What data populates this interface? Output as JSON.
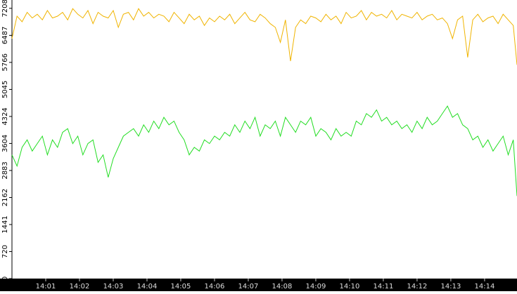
{
  "chart_data": {
    "type": "line",
    "x": [
      0,
      0.15,
      0.3,
      0.45,
      0.6,
      0.75,
      0.9,
      1.05,
      1.2,
      1.35,
      1.5,
      1.65,
      1.8,
      1.95,
      2.1,
      2.25,
      2.4,
      2.55,
      2.7,
      2.85,
      3,
      3.15,
      3.3,
      3.45,
      3.6,
      3.75,
      3.9,
      4.05,
      4.2,
      4.35,
      4.5,
      4.65,
      4.8,
      4.95,
      5.1,
      5.25,
      5.4,
      5.55,
      5.7,
      5.85,
      6,
      6.15,
      6.3,
      6.45,
      6.6,
      6.75,
      6.9,
      7.05,
      7.2,
      7.35,
      7.5,
      7.65,
      7.8,
      7.95,
      8.1,
      8.25,
      8.4,
      8.55,
      8.7,
      8.85,
      9,
      9.15,
      9.3,
      9.45,
      9.6,
      9.75,
      9.9,
      10.05,
      10.2,
      10.35,
      10.5,
      10.65,
      10.8,
      10.95,
      11.1,
      11.25,
      11.4,
      11.55,
      11.7,
      11.85,
      12,
      12.15,
      12.3,
      12.45,
      12.6,
      12.75,
      12.9,
      13.05,
      13.2,
      13.35,
      13.5,
      13.65,
      13.8,
      13.95,
      14.1,
      14.25,
      14.4,
      14.55,
      14.7,
      14.85,
      14.96
    ],
    "series": [
      {
        "color": "#f0b400",
        "values": [
          6400,
          7000,
          6850,
          7100,
          6950,
          7050,
          6900,
          7150,
          6950,
          7000,
          7100,
          6900,
          7200,
          7050,
          6950,
          7150,
          6800,
          7100,
          7000,
          6950,
          7150,
          6700,
          7050,
          7100,
          6900,
          7200,
          7000,
          7100,
          6950,
          7050,
          7000,
          6850,
          7100,
          6950,
          6800,
          7050,
          6900,
          7000,
          6750,
          6950,
          6850,
          7000,
          6900,
          7050,
          6800,
          6950,
          7100,
          6900,
          6850,
          7050,
          6950,
          6800,
          6700,
          6300,
          6900,
          5800,
          6700,
          6900,
          6800,
          7000,
          6950,
          6850,
          7050,
          6900,
          7000,
          6800,
          7100,
          6950,
          7000,
          7150,
          6900,
          7100,
          7000,
          7050,
          6950,
          7150,
          6900,
          7050,
          7000,
          6950,
          7100,
          6900,
          7000,
          7050,
          6900,
          6950,
          6800,
          6400,
          6900,
          7000,
          5900,
          6900,
          7050,
          6850,
          6950,
          7000,
          6800,
          7050,
          6900,
          6750,
          5700
        ]
      },
      {
        "color": "#22dd22",
        "values": [
          3300,
          3000,
          3500,
          3700,
          3400,
          3600,
          3800,
          3300,
          3700,
          3500,
          3900,
          4000,
          3600,
          3800,
          3300,
          3600,
          3700,
          3100,
          3300,
          2700,
          3200,
          3500,
          3800,
          3900,
          4000,
          3800,
          4100,
          3900,
          4200,
          4000,
          4300,
          4100,
          4200,
          3900,
          3700,
          3300,
          3500,
          3400,
          3700,
          3600,
          3800,
          3700,
          3900,
          3800,
          4100,
          3900,
          4200,
          4000,
          4300,
          3800,
          4100,
          4000,
          4200,
          3800,
          4300,
          4100,
          3900,
          4200,
          4100,
          4300,
          3800,
          4000,
          3900,
          3700,
          4000,
          3800,
          3900,
          3800,
          4200,
          4100,
          4400,
          4300,
          4500,
          4200,
          4300,
          4100,
          4200,
          4000,
          4100,
          3900,
          4200,
          4000,
          4300,
          4100,
          4200,
          4400,
          4600,
          4300,
          4400,
          4100,
          4000,
          3700,
          3800,
          3500,
          3700,
          3400,
          3600,
          3800,
          3300,
          3700,
          2200
        ]
      }
    ],
    "xlim": [
      0,
      14.96
    ],
    "xticks": [
      {
        "value": 1,
        "label": "14:01"
      },
      {
        "value": 2,
        "label": "14:02"
      },
      {
        "value": 3,
        "label": "14:03"
      },
      {
        "value": 4,
        "label": "14:04"
      },
      {
        "value": 5,
        "label": "14:05"
      },
      {
        "value": 6,
        "label": "14:06"
      },
      {
        "value": 7,
        "label": "14:07"
      },
      {
        "value": 8,
        "label": "14:08"
      },
      {
        "value": 9,
        "label": "14:09"
      },
      {
        "value": 10,
        "label": "14:10"
      },
      {
        "value": 11,
        "label": "14:11"
      },
      {
        "value": 12,
        "label": "14:12"
      },
      {
        "value": 13,
        "label": "14:13"
      },
      {
        "value": 14,
        "label": "14:14"
      }
    ],
    "ylim": [
      0,
      7430
    ],
    "yticks": [
      0,
      720,
      1441,
      2162,
      2883,
      3604,
      4324,
      5045,
      5766,
      6487,
      7208
    ]
  }
}
